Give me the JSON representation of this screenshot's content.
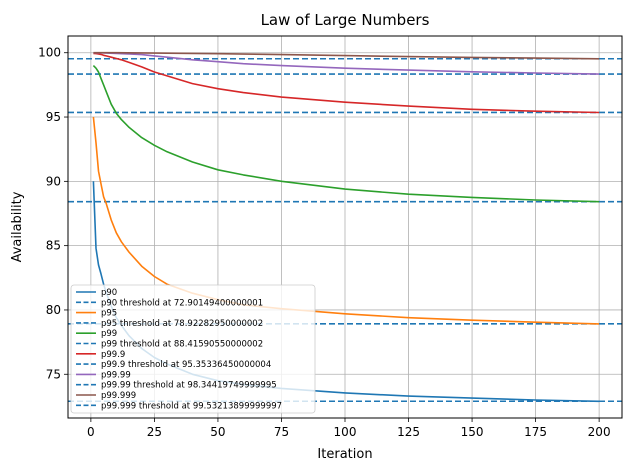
{
  "chart_data": {
    "type": "line",
    "title": "Law of Large Numbers",
    "xlabel": "Iteration",
    "ylabel": "Availability",
    "xlim": [
      -9,
      209
    ],
    "ylim": [
      71.6,
      101.3
    ],
    "xticks": [
      0,
      25,
      50,
      75,
      100,
      125,
      150,
      175,
      200
    ],
    "yticks": [
      75,
      80,
      85,
      90,
      95,
      100
    ],
    "grid": true,
    "legend_position": "lower-left",
    "series": [
      {
        "name": "p90",
        "color": "#1f77b4",
        "x": [
          1,
          2,
          3,
          4,
          5,
          6,
          8,
          10,
          12,
          15,
          20,
          25,
          30,
          40,
          50,
          60,
          75,
          100,
          125,
          150,
          175,
          200
        ],
        "y": [
          90,
          84.8,
          83.5,
          82.8,
          82.0,
          81.4,
          80.3,
          79.4,
          78.8,
          78.0,
          77.0,
          76.3,
          75.8,
          75.0,
          74.5,
          74.2,
          73.9,
          73.55,
          73.3,
          73.15,
          73.0,
          72.9
        ]
      },
      {
        "name": "p95",
        "color": "#ff7f0e",
        "x": [
          1,
          2,
          3,
          4,
          5,
          6,
          8,
          10,
          12,
          15,
          20,
          25,
          30,
          40,
          50,
          60,
          75,
          100,
          125,
          150,
          175,
          200
        ],
        "y": [
          95,
          93.0,
          90.8,
          89.8,
          88.8,
          88.3,
          87.0,
          86.0,
          85.3,
          84.5,
          83.4,
          82.6,
          82.0,
          81.3,
          80.8,
          80.4,
          80.1,
          79.7,
          79.4,
          79.2,
          79.05,
          78.92
        ]
      },
      {
        "name": "p99",
        "color": "#2ca02c",
        "x": [
          1,
          2,
          3,
          4,
          5,
          6,
          8,
          10,
          12,
          15,
          20,
          25,
          30,
          40,
          50,
          60,
          75,
          100,
          125,
          150,
          175,
          200
        ],
        "y": [
          99,
          98.8,
          98.5,
          98.0,
          97.5,
          97.0,
          96.0,
          95.3,
          94.8,
          94.2,
          93.4,
          92.8,
          92.3,
          91.5,
          90.9,
          90.5,
          90.0,
          89.4,
          89.0,
          88.75,
          88.55,
          88.42
        ]
      },
      {
        "name": "p99.9",
        "color": "#d62728",
        "x": [
          1,
          2,
          3,
          4,
          5,
          6,
          8,
          10,
          12,
          15,
          20,
          25,
          30,
          40,
          50,
          60,
          75,
          100,
          125,
          150,
          175,
          200
        ],
        "y": [
          99.95,
          99.93,
          99.9,
          99.87,
          99.8,
          99.75,
          99.65,
          99.55,
          99.45,
          99.25,
          98.9,
          98.5,
          98.2,
          97.6,
          97.2,
          96.9,
          96.55,
          96.15,
          95.85,
          95.6,
          95.45,
          95.35
        ]
      },
      {
        "name": "p99.99",
        "color": "#9467bd",
        "x": [
          1,
          5,
          10,
          15,
          20,
          25,
          30,
          40,
          50,
          60,
          75,
          100,
          125,
          150,
          175,
          200
        ],
        "y": [
          99.99,
          99.98,
          99.95,
          99.9,
          99.85,
          99.75,
          99.65,
          99.45,
          99.3,
          99.15,
          99.0,
          98.8,
          98.65,
          98.52,
          98.42,
          98.34
        ]
      },
      {
        "name": "p99.999",
        "color": "#8c564b",
        "x": [
          1,
          10,
          25,
          50,
          75,
          100,
          125,
          150,
          175,
          200
        ],
        "y": [
          100.0,
          100.0,
          99.97,
          99.92,
          99.85,
          99.78,
          99.7,
          99.64,
          99.58,
          99.53
        ]
      }
    ],
    "thresholds": [
      {
        "label": "p90 threshold at 72.90149400000001",
        "value": 72.90149400000001,
        "color": "#1f77b4"
      },
      {
        "label": "p95 threshold at 78.92282950000002",
        "value": 78.92282950000002,
        "color": "#1f77b4"
      },
      {
        "label": "p99 threshold at 88.41590550000002",
        "value": 88.41590550000002,
        "color": "#1f77b4"
      },
      {
        "label": "p99.9 threshold at 95.35336450000004",
        "value": 95.35336450000004,
        "color": "#1f77b4"
      },
      {
        "label": "p99.99 threshold at 98.34419749999995",
        "value": 98.34419749999995,
        "color": "#1f77b4"
      },
      {
        "label": "p99.999 threshold at 99.53213899999997",
        "value": 99.53213899999997,
        "color": "#1f77b4"
      }
    ],
    "legend": [
      {
        "label": "p90",
        "style": "solid",
        "color": "#1f77b4"
      },
      {
        "label": "p90 threshold at 72.90149400000001",
        "style": "dashed",
        "color": "#1f77b4"
      },
      {
        "label": "p95",
        "style": "solid",
        "color": "#ff7f0e"
      },
      {
        "label": "p95 threshold at 78.92282950000002",
        "style": "dashed",
        "color": "#1f77b4"
      },
      {
        "label": "p99",
        "style": "solid",
        "color": "#2ca02c"
      },
      {
        "label": "p99 threshold at 88.41590550000002",
        "style": "dashed",
        "color": "#1f77b4"
      },
      {
        "label": "p99.9",
        "style": "solid",
        "color": "#d62728"
      },
      {
        "label": "p99.9 threshold at 95.35336450000004",
        "style": "dashed",
        "color": "#1f77b4"
      },
      {
        "label": "p99.99",
        "style": "solid",
        "color": "#9467bd"
      },
      {
        "label": "p99.99 threshold at 98.34419749999995",
        "style": "dashed",
        "color": "#1f77b4"
      },
      {
        "label": "p99.999",
        "style": "solid",
        "color": "#8c564b"
      },
      {
        "label": "p99.999 threshold at 99.53213899999997",
        "style": "dashed",
        "color": "#1f77b4"
      }
    ]
  }
}
